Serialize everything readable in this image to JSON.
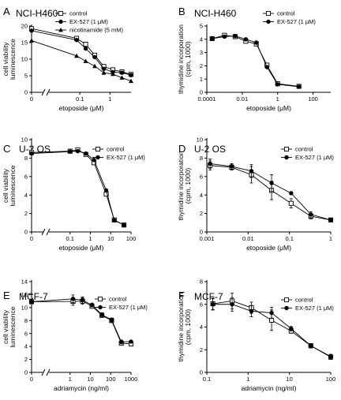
{
  "chart_data": [
    {
      "panel": "A",
      "type": "line",
      "title": "NCI-H460",
      "xlabel": "etoposide (μM)",
      "ylabel": [
        "cell viability",
        "luminescence"
      ],
      "xscale": "log",
      "xlim": [
        0.01,
        5
      ],
      "ylim": [
        0,
        20
      ],
      "xticks": [
        {
          "v": 0.1,
          "label": "0.1"
        },
        {
          "v": 1,
          "label": "1"
        }
      ],
      "yticks": [
        0,
        5,
        10,
        15,
        20
      ],
      "zero_label": "0",
      "axis_break": true,
      "series": [
        {
          "name": "control",
          "marker": "open-square",
          "x": [
            0,
            0.078,
            0.156,
            0.3125,
            0.625,
            1.25,
            2.5,
            5
          ],
          "y": [
            19.2,
            16.3,
            14.5,
            11.2,
            7.8,
            6.8,
            6.2,
            5.4
          ]
        },
        {
          "name": "EX-527 (1 μM)",
          "marker": "filled-circle",
          "x": [
            0,
            0.078,
            0.156,
            0.3125,
            0.625,
            1.25,
            2.5,
            5
          ],
          "y": [
            18.6,
            15.8,
            13.2,
            10.6,
            7.1,
            6.1,
            5.9,
            5.2
          ]
        },
        {
          "name": "nicotinamide (5 mM)",
          "marker": "filled-triangle",
          "x": [
            0,
            0.078,
            0.156,
            0.3125,
            0.625,
            1.25,
            2.5,
            5
          ],
          "y": [
            15.6,
            11.0,
            9.4,
            7.9,
            5.9,
            5.5,
            4.4,
            3.4
          ]
        }
      ]
    },
    {
      "panel": "B",
      "type": "line",
      "title": "NCI-H460",
      "xlabel": "etoposide (μM)",
      "ylabel": [
        "thymidine incorporation",
        "(cpm, 1000)"
      ],
      "xscale": "log",
      "xlim": [
        0.0001,
        1000
      ],
      "ylim": [
        0,
        5
      ],
      "xticks": [
        {
          "v": 0.0001,
          "label": "0.0001"
        },
        {
          "v": 0.01,
          "label": "0.01"
        },
        {
          "v": 1,
          "label": "1"
        },
        {
          "v": 100,
          "label": "100"
        }
      ],
      "yticks": [
        0,
        1,
        2,
        3,
        4,
        5
      ],
      "zero_label": "",
      "axis_break": false,
      "series": [
        {
          "name": "control",
          "marker": "open-square",
          "x": [
            0.0002,
            0.001,
            0.004,
            0.016,
            0.0625,
            0.25,
            1,
            16
          ],
          "y": [
            4.05,
            4.3,
            4.2,
            3.85,
            3.65,
            2.05,
            0.65,
            0.45
          ]
        },
        {
          "name": "EX-527 (1 μM)",
          "marker": "filled-circle",
          "x": [
            0.0002,
            0.001,
            0.004,
            0.016,
            0.0625,
            0.25,
            1,
            16
          ],
          "y": [
            4.05,
            4.2,
            4.25,
            4.0,
            3.75,
            1.9,
            0.6,
            0.42
          ]
        }
      ]
    },
    {
      "panel": "C",
      "type": "line",
      "title": "U-2 OS",
      "xlabel": "etoposide (μM)",
      "ylabel": [
        "cell viability",
        "luminescence"
      ],
      "xscale": "log",
      "xlim": [
        0.01,
        100
      ],
      "ylim": [
        0,
        10
      ],
      "xticks": [
        {
          "v": 0.1,
          "label": "0.1"
        },
        {
          "v": 1,
          "label": "1"
        },
        {
          "v": 10,
          "label": "10"
        },
        {
          "v": 100,
          "label": "100"
        }
      ],
      "yticks": [
        0,
        2,
        4,
        6,
        8,
        10
      ],
      "zero_label": "0",
      "axis_break": true,
      "series": [
        {
          "name": "control",
          "marker": "open-square",
          "x": [
            0,
            0.1,
            0.24,
            0.6,
            1.5,
            6,
            15,
            45
          ],
          "y": [
            8.6,
            8.75,
            8.9,
            8.4,
            7.5,
            4.1,
            1.3,
            0.75
          ]
        },
        {
          "name": "EX-527 (1 μM)",
          "marker": "filled-circle",
          "x": [
            0,
            0.1,
            0.24,
            0.6,
            1.5,
            6,
            15,
            45
          ],
          "y": [
            8.5,
            8.7,
            8.75,
            8.5,
            7.8,
            4.5,
            1.25,
            0.75
          ]
        }
      ]
    },
    {
      "panel": "D",
      "type": "line",
      "title": "U-2 OS",
      "xlabel": "etoposide (μM)",
      "ylabel": [
        "thymidine incorporation",
        "(cpm, 1000)"
      ],
      "xscale": "log",
      "xlim": [
        0.001,
        1
      ],
      "ylim": [
        0,
        10
      ],
      "xticks": [
        {
          "v": 0.001,
          "label": "0.001"
        },
        {
          "v": 0.01,
          "label": "0.01"
        },
        {
          "v": 0.1,
          "label": "0.1"
        },
        {
          "v": 1,
          "label": "1"
        }
      ],
      "yticks": [
        0,
        2,
        4,
        6,
        8,
        10
      ],
      "zero_label": "",
      "axis_break": false,
      "series": [
        {
          "name": "control",
          "marker": "open-square",
          "x": [
            0.0012,
            0.004,
            0.012,
            0.037,
            0.11,
            0.33,
            1
          ],
          "y": [
            7.2,
            7.0,
            6.2,
            4.5,
            3.1,
            1.7,
            1.3
          ],
          "err": [
            0.5,
            0.3,
            0.9,
            1.0,
            0.5,
            0.3,
            0.2
          ]
        },
        {
          "name": "EX-527 (1 μM)",
          "marker": "filled-circle",
          "x": [
            0.0012,
            0.004,
            0.012,
            0.037,
            0.11,
            0.33,
            1
          ],
          "y": [
            7.4,
            7.1,
            6.6,
            5.3,
            4.2,
            1.9,
            1.3
          ],
          "err": [
            0.5,
            0.3,
            0.7,
            0.9,
            0,
            0.3,
            0.2
          ]
        }
      ]
    },
    {
      "panel": "E",
      "type": "line",
      "title": "MCF-7",
      "xlabel": "adriamycin (ng/ml)",
      "ylabel": [
        "cell viability",
        "luminescence"
      ],
      "xscale": "log",
      "xlim": [
        0.1,
        1000
      ],
      "ylim": [
        0,
        14
      ],
      "xticks": [
        {
          "v": 1,
          "label": "1"
        },
        {
          "v": 10,
          "label": "10"
        },
        {
          "v": 100,
          "label": "100"
        },
        {
          "v": 1000,
          "label": "1000"
        }
      ],
      "yticks": [
        0,
        2,
        4,
        6,
        8,
        10,
        12,
        14
      ],
      "zero_label": "0",
      "axis_break": true,
      "series": [
        {
          "name": "control",
          "marker": "open-square",
          "x": [
            0,
            1.4,
            4.1,
            12,
            37,
            111,
            333,
            1000
          ],
          "y": [
            10.9,
            10.95,
            11.0,
            10.2,
            8.8,
            8.0,
            4.5,
            4.4
          ],
          "err": [
            0,
            0.6,
            0.5,
            0.3,
            0.3,
            0.3,
            0.3,
            0.2
          ]
        },
        {
          "name": "EX-527 (1 μM)",
          "marker": "filled-circle",
          "x": [
            0,
            1.4,
            4.1,
            12,
            37,
            111,
            333,
            1000
          ],
          "y": [
            10.9,
            11.35,
            11.15,
            10.4,
            8.9,
            8.1,
            4.7,
            4.75
          ],
          "err": [
            0,
            0.6,
            0.5,
            0.3,
            0.3,
            0.3,
            0.3,
            0.2
          ]
        }
      ]
    },
    {
      "panel": "F",
      "type": "line",
      "title": "MCF-7",
      "xlabel": "adriamycin (ng/ml)",
      "ylabel": [
        "thymidine incorporation",
        "(cpm, 1000)"
      ],
      "xscale": "log",
      "xlim": [
        0.1,
        100
      ],
      "ylim": [
        0,
        8
      ],
      "xticks": [
        {
          "v": 0.1,
          "label": "0.1"
        },
        {
          "v": 1,
          "label": "1"
        },
        {
          "v": 10,
          "label": "10"
        },
        {
          "v": 100,
          "label": "100"
        }
      ],
      "yticks": [
        0,
        2,
        4,
        6,
        8
      ],
      "zero_label": "",
      "axis_break": false,
      "series": [
        {
          "name": "control",
          "marker": "open-square",
          "x": [
            0.14,
            0.41,
            1.2,
            3.7,
            11,
            33,
            100
          ],
          "y": [
            6.05,
            6.3,
            5.7,
            4.6,
            3.65,
            2.35,
            1.35
          ],
          "err": [
            0.5,
            0.7,
            0.5,
            0.9,
            0.2,
            0.2,
            0.2
          ]
        },
        {
          "name": "EX-527 (1 μM)",
          "marker": "filled-circle",
          "x": [
            0.14,
            0.41,
            1.2,
            3.7,
            11,
            33,
            100
          ],
          "y": [
            6.0,
            6.0,
            5.4,
            5.25,
            3.85,
            2.35,
            1.4
          ],
          "err": [
            0.5,
            0.6,
            0.5,
            0.5,
            0.2,
            0.2,
            0.2
          ]
        }
      ]
    }
  ]
}
